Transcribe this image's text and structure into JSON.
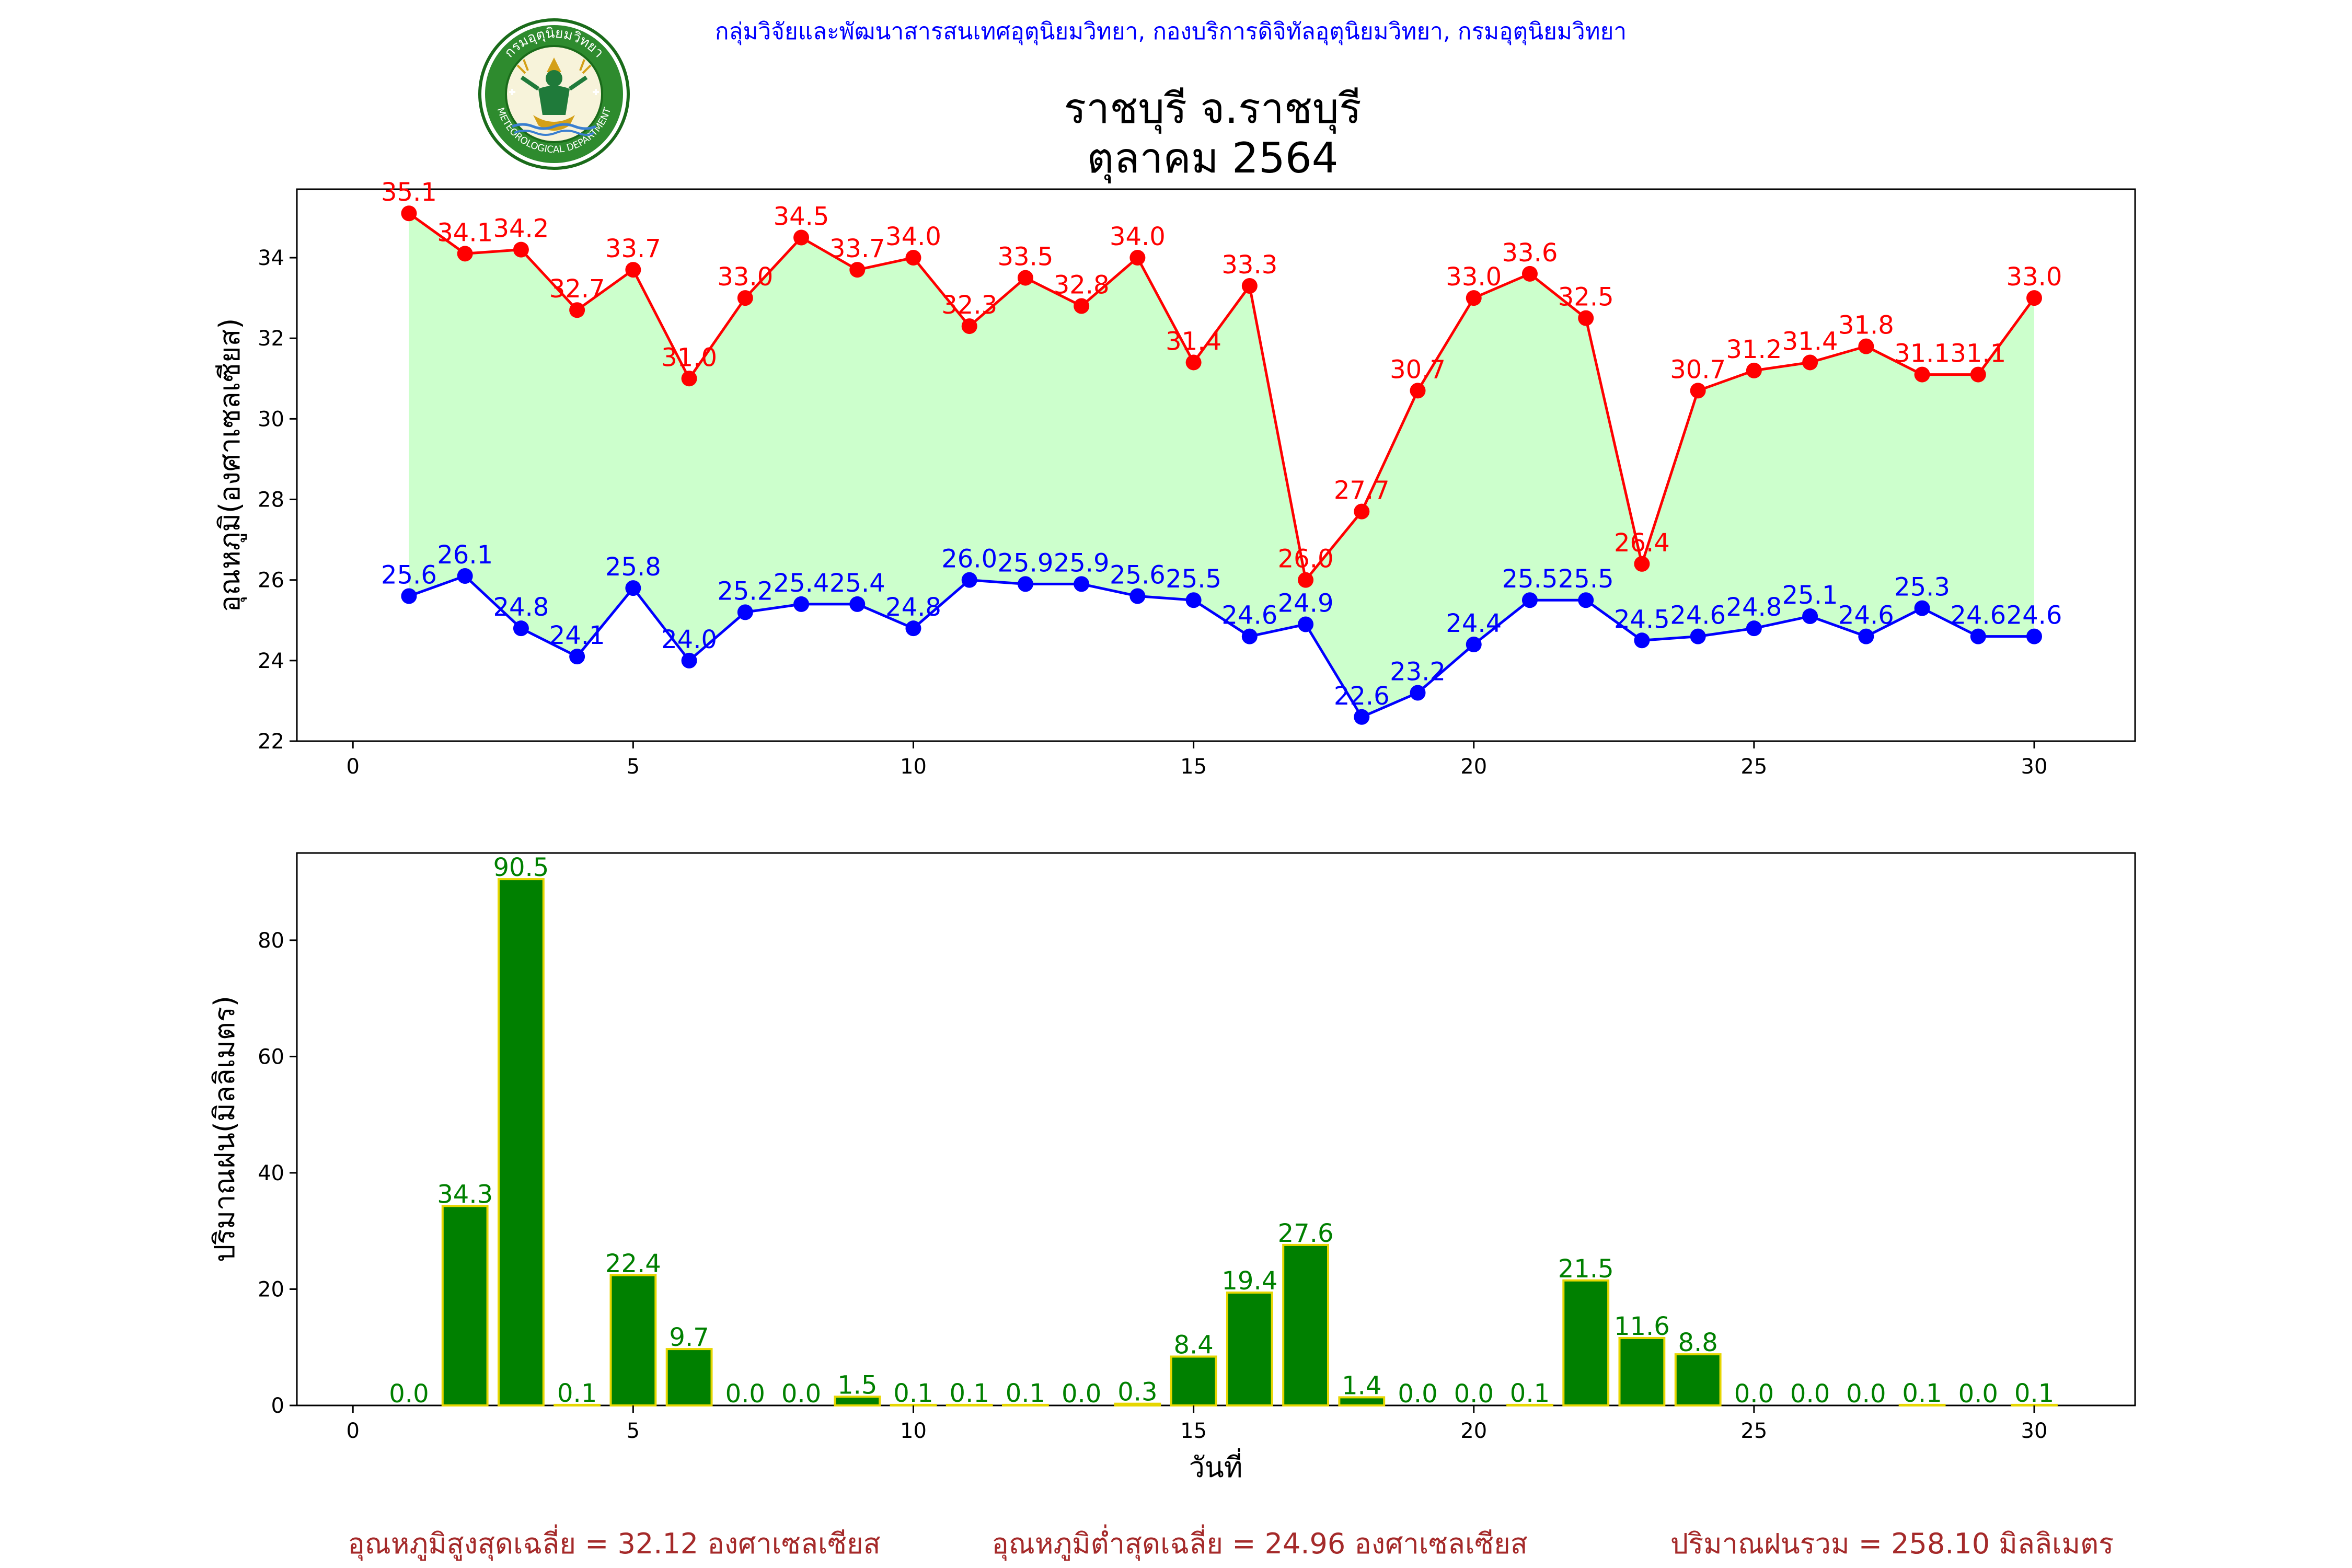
{
  "header": {
    "credit": "กลุ่มวิจัยและพัฒนาสารสนเทศอุตุนิยมวิทยา, กองบริการดิจิทัลอุตุนิยมวิทยา, กรมอุตุนิยมวิทยา",
    "logo_text_top": "กรมอุตุนิยมวิทยา",
    "logo_text_bottom": "METEOROLOGICAL DEPARTMENT"
  },
  "title": {
    "line1": "ราชบุรี จ.ราชบุรี",
    "line2": "ตุลาคม 2564"
  },
  "colors": {
    "max_line": "#ff0000",
    "min_line": "#0000ff",
    "fill": "#ccffcc",
    "bar": "#008000",
    "bar_edge": "#e6d600",
    "summary": "#a52a2a",
    "credit": "#0000ff"
  },
  "chart_data": [
    {
      "type": "line",
      "ylabel": "อุณหภูมิ(องศาเซลเซียส)",
      "xlabel": "",
      "xlim": [
        -1,
        31.8
      ],
      "ylim": [
        22,
        35.7
      ],
      "xticks": [
        0,
        5,
        10,
        15,
        20,
        25,
        30
      ],
      "yticks": [
        22,
        24,
        26,
        28,
        30,
        32,
        34
      ],
      "x": [
        1,
        2,
        3,
        4,
        5,
        6,
        7,
        8,
        9,
        10,
        11,
        12,
        13,
        14,
        15,
        16,
        17,
        18,
        19,
        20,
        21,
        22,
        23,
        24,
        25,
        26,
        27,
        28,
        29,
        30
      ],
      "fill_between": [
        "max",
        "min"
      ],
      "series": [
        {
          "key": "max",
          "values": [
            35.1,
            34.1,
            34.2,
            32.7,
            33.7,
            31.0,
            33.0,
            34.5,
            33.7,
            34.0,
            32.3,
            33.5,
            32.8,
            34.0,
            31.4,
            33.3,
            26.0,
            27.7,
            30.7,
            33.0,
            33.6,
            32.5,
            26.4,
            30.7,
            31.2,
            31.4,
            31.8,
            31.1,
            31.1,
            33.0
          ]
        },
        {
          "key": "min",
          "values": [
            25.6,
            26.1,
            24.8,
            24.1,
            25.8,
            24.0,
            25.2,
            25.4,
            25.4,
            24.8,
            26.0,
            25.9,
            25.9,
            25.6,
            25.5,
            24.6,
            24.9,
            22.6,
            23.2,
            24.4,
            25.5,
            25.5,
            24.5,
            24.6,
            24.8,
            25.1,
            24.6,
            25.3,
            24.6,
            24.6
          ]
        }
      ]
    },
    {
      "type": "bar",
      "ylabel": "ปริมาณฝน(มิลลิเมตร)",
      "xlabel": "วันที่",
      "xlim": [
        -1,
        31.8
      ],
      "ylim": [
        0,
        95
      ],
      "xticks": [
        0,
        5,
        10,
        15,
        20,
        25,
        30
      ],
      "yticks": [
        0,
        20,
        40,
        60,
        80
      ],
      "x": [
        1,
        2,
        3,
        4,
        5,
        6,
        7,
        8,
        9,
        10,
        11,
        12,
        13,
        14,
        15,
        16,
        17,
        18,
        19,
        20,
        21,
        22,
        23,
        24,
        25,
        26,
        27,
        28,
        29,
        30
      ],
      "values": [
        0.0,
        34.3,
        90.5,
        0.1,
        22.4,
        9.7,
        0.0,
        0.0,
        1.5,
        0.1,
        0.1,
        0.1,
        0.0,
        0.3,
        8.4,
        19.4,
        27.6,
        1.4,
        0.0,
        0.0,
        0.1,
        21.5,
        11.6,
        8.8,
        0.0,
        0.0,
        0.0,
        0.1,
        0.0,
        0.1
      ]
    }
  ],
  "summary": {
    "avg_max": "อุณหภูมิสูงสุดเฉลี่ย = 32.12 องศาเซลเซียส",
    "avg_min": "อุณหภูมิต่ำสุดเฉลี่ย = 24.96 องศาเซลเซียส",
    "total_rain": "ปริมาณฝนรวม = 258.10 มิลลิเมตร"
  }
}
